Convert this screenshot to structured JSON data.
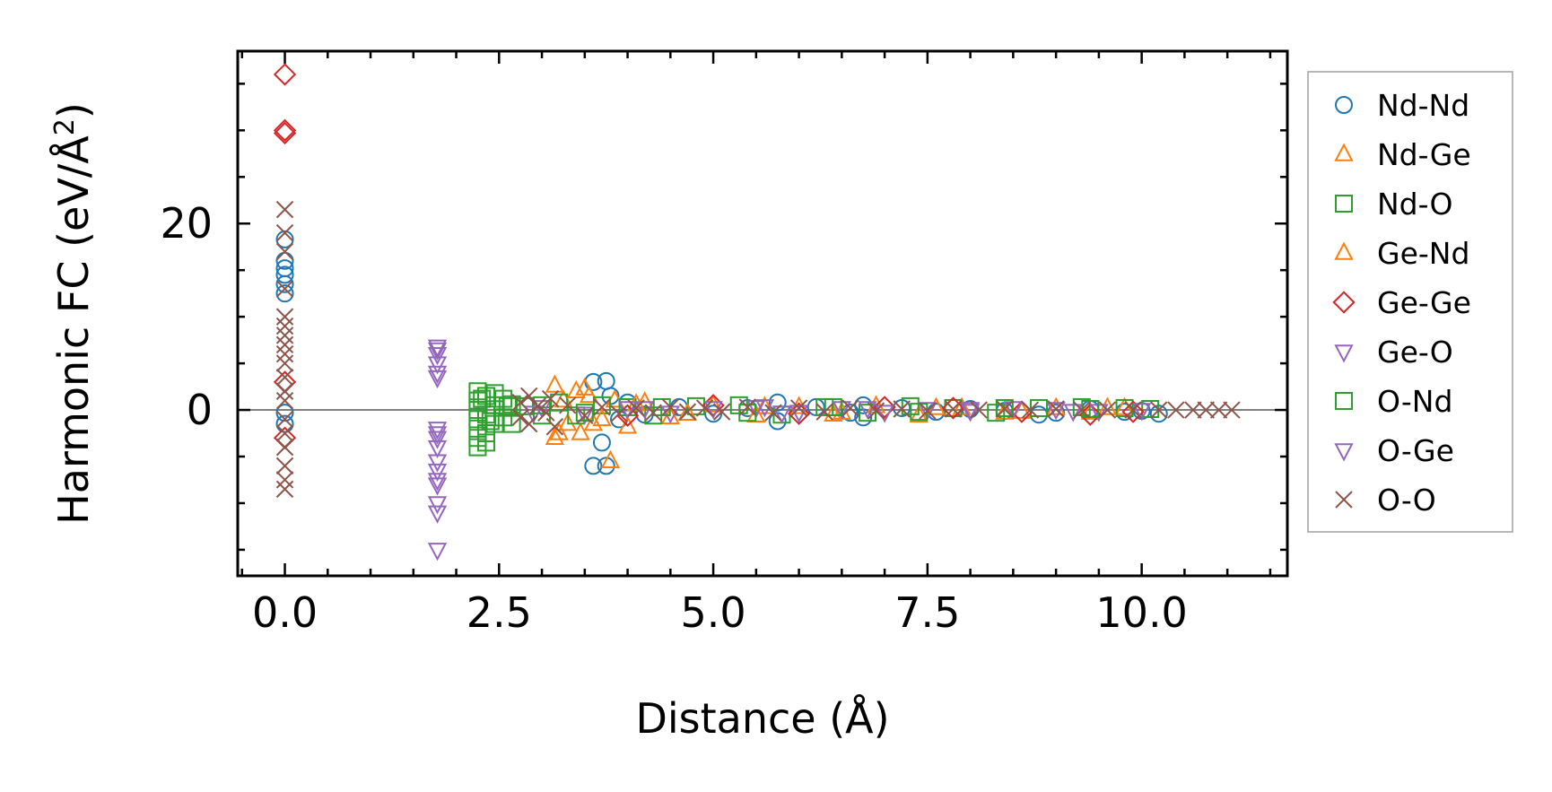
{
  "chart_data": {
    "type": "scatter",
    "xlabel": "Distance (Å)",
    "ylabel": "Harmonic FC (eV/Å²)",
    "ylabel_parts": {
      "main": "Harmonic FC (eV/Å",
      "sup": "2",
      "tail": ")"
    },
    "xlim": [
      -0.55,
      11.7
    ],
    "ylim": [
      -17.8,
      38.5
    ],
    "xticks": [
      0.0,
      2.5,
      5.0,
      7.5,
      10.0
    ],
    "xtick_labels": [
      "0.0",
      "2.5",
      "5.0",
      "7.5",
      "10.0"
    ],
    "yticks": [
      0,
      20
    ],
    "ytick_labels": [
      "0",
      "20"
    ],
    "x_minor_step": 0.5,
    "y_minor_step": 5,
    "reference_line_y": 0,
    "grid": false,
    "legend_position": "outside-right",
    "series": [
      {
        "name": "Nd-Nd",
        "marker": "circle",
        "color": "#1f77b4",
        "points": [
          [
            0,
            18.3
          ],
          [
            0,
            16.0
          ],
          [
            0,
            15.2
          ],
          [
            0,
            14.5
          ],
          [
            0,
            13.5
          ],
          [
            0,
            12.5
          ],
          [
            0,
            -0.3
          ],
          [
            0,
            -1.5
          ],
          [
            3.6,
            3.0
          ],
          [
            3.75,
            3.1
          ],
          [
            3.7,
            -3.5
          ],
          [
            3.6,
            -6.0
          ],
          [
            3.75,
            -6.0
          ],
          [
            3.8,
            1.5
          ],
          [
            3.9,
            -1.0
          ],
          [
            4.0,
            0.8
          ],
          [
            4.2,
            -0.5
          ],
          [
            4.6,
            0.3
          ],
          [
            5.0,
            -0.4
          ],
          [
            5.4,
            0.2
          ],
          [
            5.75,
            0.8
          ],
          [
            5.75,
            -1.2
          ],
          [
            6.2,
            0.3
          ],
          [
            6.6,
            -0.3
          ],
          [
            6.75,
            0.5
          ],
          [
            6.75,
            -0.8
          ],
          [
            7.2,
            0.2
          ],
          [
            7.6,
            -0.2
          ],
          [
            8.0,
            0.1
          ],
          [
            8.4,
            -0.1
          ],
          [
            8.8,
            -0.5
          ],
          [
            9.0,
            -0.3
          ],
          [
            9.4,
            0.1
          ],
          [
            9.8,
            -0.2
          ],
          [
            10.2,
            -0.4
          ],
          [
            10.0,
            -0.1
          ]
        ]
      },
      {
        "name": "Nd-Ge",
        "marker": "triangle-up",
        "color": "#ff7f0e",
        "points": [
          [
            3.15,
            2.6
          ],
          [
            3.15,
            -3.0
          ],
          [
            3.25,
            1.0
          ],
          [
            3.3,
            -1.5
          ],
          [
            3.45,
            -2.5
          ],
          [
            3.5,
            2.3
          ],
          [
            3.55,
            1.5
          ],
          [
            3.6,
            -1.5
          ],
          [
            3.8,
            -5.5
          ],
          [
            3.85,
            1.0
          ],
          [
            4.0,
            -1.8
          ],
          [
            4.2,
            0.8
          ],
          [
            4.5,
            -0.8
          ],
          [
            5.0,
            0.5
          ],
          [
            5.5,
            -0.6
          ],
          [
            6.0,
            0.3
          ],
          [
            6.4,
            -0.5
          ],
          [
            6.9,
            0.4
          ],
          [
            7.4,
            -0.6
          ],
          [
            7.9,
            0.2
          ],
          [
            8.4,
            -0.3
          ],
          [
            9.0,
            0.2
          ],
          [
            9.4,
            -0.3
          ],
          [
            9.8,
            0.2
          ]
        ]
      },
      {
        "name": "Nd-O",
        "marker": "square",
        "color": "#2ca02c",
        "points": [
          [
            2.25,
            2.0
          ],
          [
            2.25,
            1.0
          ],
          [
            2.25,
            0.0
          ],
          [
            2.25,
            -1.0
          ],
          [
            2.25,
            -2.0
          ],
          [
            2.25,
            -3.0
          ],
          [
            2.25,
            -4.0
          ],
          [
            2.35,
            1.5
          ],
          [
            2.35,
            -0.5
          ],
          [
            2.35,
            -2.5
          ],
          [
            2.35,
            -3.5
          ],
          [
            2.45,
            1.8
          ],
          [
            2.45,
            0.5
          ],
          [
            2.45,
            -1.5
          ],
          [
            2.55,
            1.2
          ],
          [
            2.55,
            -0.8
          ],
          [
            2.65,
            0.6
          ],
          [
            2.65,
            -1.5
          ],
          [
            2.8,
            0.4
          ],
          [
            3.0,
            -0.6
          ],
          [
            3.2,
            0.8
          ],
          [
            3.4,
            -0.6
          ],
          [
            3.7,
            0.5
          ],
          [
            4.0,
            0.3
          ],
          [
            4.3,
            -0.6
          ],
          [
            4.8,
            0.4
          ],
          [
            5.3,
            0.5
          ],
          [
            5.8,
            -0.5
          ],
          [
            6.3,
            0.3
          ],
          [
            6.8,
            -0.3
          ],
          [
            7.3,
            0.4
          ],
          [
            7.8,
            0.2
          ],
          [
            8.3,
            -0.3
          ],
          [
            8.8,
            0.2
          ],
          [
            9.3,
            0.3
          ],
          [
            9.8,
            0.2
          ],
          [
            10.1,
            0.1
          ]
        ]
      },
      {
        "name": "Ge-Nd",
        "marker": "triangle-up",
        "color": "#ff7f0e",
        "points": [
          [
            3.2,
            -2.5
          ],
          [
            3.4,
            2.0
          ],
          [
            3.7,
            -1.0
          ],
          [
            4.1,
            0.6
          ],
          [
            4.7,
            -0.4
          ],
          [
            5.6,
            0.3
          ],
          [
            6.5,
            -0.3
          ],
          [
            7.6,
            0.2
          ],
          [
            8.6,
            -0.2
          ],
          [
            9.6,
            0.2
          ]
        ]
      },
      {
        "name": "Ge-Ge",
        "marker": "diamond",
        "color": "#d62728",
        "points": [
          [
            0,
            36.0
          ],
          [
            0,
            30.0
          ],
          [
            0,
            29.7
          ],
          [
            0,
            3.0
          ],
          [
            0,
            -3.0
          ],
          [
            4.0,
            -0.6
          ],
          [
            5.0,
            0.5
          ],
          [
            6.0,
            -0.4
          ],
          [
            7.0,
            0.3
          ],
          [
            7.8,
            0.2
          ],
          [
            8.6,
            -0.2
          ],
          [
            9.4,
            -0.5
          ],
          [
            9.9,
            -0.2
          ]
        ]
      },
      {
        "name": "Ge-O",
        "marker": "triangle-down",
        "color": "#9467bd",
        "points": [
          [
            1.78,
            6.8
          ],
          [
            1.78,
            6.0
          ],
          [
            1.78,
            5.0
          ],
          [
            1.78,
            4.0
          ],
          [
            1.78,
            -2.0
          ],
          [
            1.78,
            -3.0
          ],
          [
            1.78,
            -4.0
          ],
          [
            1.78,
            -5.5
          ],
          [
            1.78,
            -6.5
          ],
          [
            1.78,
            -7.5
          ],
          [
            1.78,
            -10.0
          ],
          [
            1.78,
            -11.0
          ],
          [
            1.78,
            -15.0
          ],
          [
            3.0,
            0.3
          ],
          [
            3.5,
            -0.4
          ],
          [
            4.0,
            0.2
          ],
          [
            4.5,
            -0.3
          ],
          [
            5.0,
            0.2
          ],
          [
            5.5,
            0.3
          ],
          [
            6.0,
            -0.2
          ],
          [
            6.5,
            0.2
          ],
          [
            7.0,
            -0.2
          ],
          [
            7.5,
            0.1
          ],
          [
            8.0,
            -0.1
          ],
          [
            8.5,
            0.2
          ],
          [
            9.0,
            0.1
          ],
          [
            9.5,
            -0.1
          ],
          [
            10.0,
            0.0
          ]
        ]
      },
      {
        "name": "O-Nd",
        "marker": "square",
        "color": "#2ca02c",
        "points": [
          [
            2.3,
            1.2
          ],
          [
            2.4,
            -1.2
          ],
          [
            2.6,
            0.4
          ],
          [
            3.0,
            0.5
          ],
          [
            3.5,
            -0.3
          ],
          [
            4.4,
            0.3
          ],
          [
            5.4,
            -0.3
          ],
          [
            6.4,
            0.3
          ],
          [
            7.4,
            -0.2
          ],
          [
            8.4,
            0.2
          ],
          [
            9.4,
            0.1
          ]
        ]
      },
      {
        "name": "O-Ge",
        "marker": "triangle-down",
        "color": "#9467bd",
        "points": [
          [
            1.78,
            6.5
          ],
          [
            1.78,
            3.5
          ],
          [
            1.78,
            -2.5
          ],
          [
            1.78,
            -8.0
          ],
          [
            2.9,
            -0.3
          ],
          [
            4.2,
            0.2
          ],
          [
            5.6,
            0.4
          ],
          [
            5.8,
            -0.3
          ],
          [
            6.8,
            0.2
          ],
          [
            8.0,
            0.1
          ],
          [
            9.2,
            -0.1
          ]
        ]
      },
      {
        "name": "O-O",
        "marker": "x",
        "color": "#8c564b",
        "points": [
          [
            0,
            21.5
          ],
          [
            0,
            19.0
          ],
          [
            0,
            17.0
          ],
          [
            0,
            13.0
          ],
          [
            0,
            10.0
          ],
          [
            0,
            9.0
          ],
          [
            0,
            8.0
          ],
          [
            0,
            7.0
          ],
          [
            0,
            6.0
          ],
          [
            0,
            5.0
          ],
          [
            0,
            3.5
          ],
          [
            0,
            2.0
          ],
          [
            0,
            1.0
          ],
          [
            0,
            -1.0
          ],
          [
            0,
            -2.5
          ],
          [
            0,
            -4.0
          ],
          [
            0,
            -6.0
          ],
          [
            0,
            -7.5
          ],
          [
            0,
            -8.5
          ],
          [
            2.75,
            0.8
          ],
          [
            2.75,
            -0.8
          ],
          [
            2.85,
            -1.5
          ],
          [
            2.85,
            1.5
          ],
          [
            2.95,
            0.4
          ],
          [
            3.05,
            -0.3
          ],
          [
            3.1,
            1.2
          ],
          [
            3.15,
            -1.8
          ],
          [
            3.3,
            0.5
          ],
          [
            3.5,
            -0.6
          ],
          [
            3.7,
            0.3
          ],
          [
            3.9,
            -0.4
          ],
          [
            4.1,
            0.2
          ],
          [
            4.3,
            -0.3
          ],
          [
            4.5,
            0.3
          ],
          [
            4.7,
            -0.2
          ],
          [
            4.9,
            0.2
          ],
          [
            5.1,
            -0.2
          ],
          [
            5.4,
            0.3
          ],
          [
            5.7,
            -0.3
          ],
          [
            6.0,
            0.2
          ],
          [
            6.3,
            -0.2
          ],
          [
            6.6,
            0.2
          ],
          [
            6.9,
            -0.1
          ],
          [
            7.2,
            0.1
          ],
          [
            7.5,
            -0.1
          ],
          [
            7.8,
            0.1
          ],
          [
            8.1,
            0.0
          ],
          [
            8.4,
            0.1
          ],
          [
            8.7,
            0.0
          ],
          [
            9.0,
            0.1
          ],
          [
            9.3,
            0.0
          ],
          [
            9.6,
            0.0
          ],
          [
            9.9,
            0.0
          ],
          [
            10.2,
            0.0
          ],
          [
            10.4,
            0.0
          ],
          [
            10.6,
            0.0
          ],
          [
            10.75,
            0.0
          ],
          [
            10.9,
            0.0
          ],
          [
            11.05,
            0.0
          ]
        ]
      }
    ]
  }
}
